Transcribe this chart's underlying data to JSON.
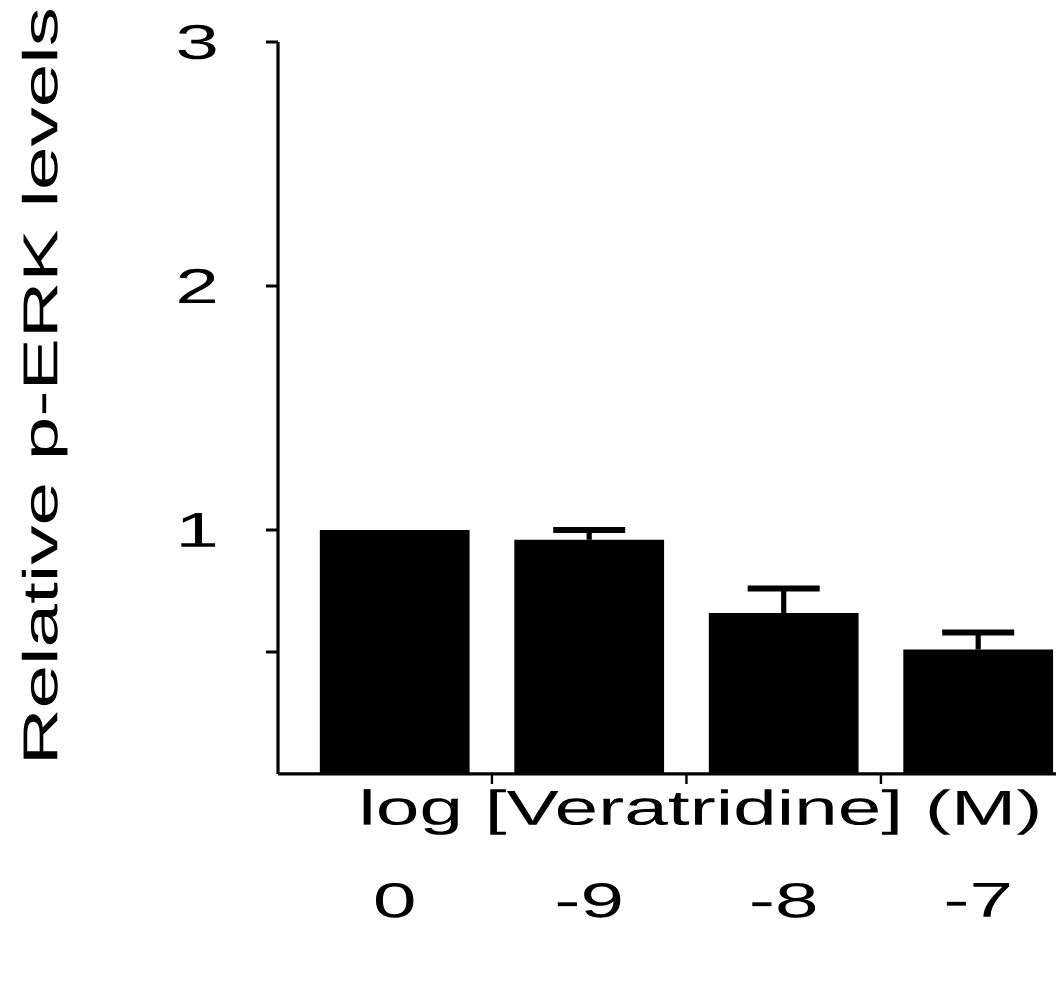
{
  "chart_data": {
    "type": "bar",
    "xlabel": "log [Veratridine] (M)",
    "ylabel": "Relative p-ERK levels",
    "categories": [
      "0",
      "-9",
      "-8",
      "-7"
    ],
    "values": [
      1.0,
      0.96,
      0.66,
      0.51
    ],
    "errors": [
      null,
      [
        0.96,
        1.0
      ],
      [
        0.66,
        0.76
      ],
      [
        0.51,
        0.58
      ]
    ],
    "color": "#000000",
    "ylim": [
      0,
      3
    ],
    "yticks": [
      {
        "value": 0.5,
        "label": null
      },
      1,
      2,
      3
    ]
  }
}
